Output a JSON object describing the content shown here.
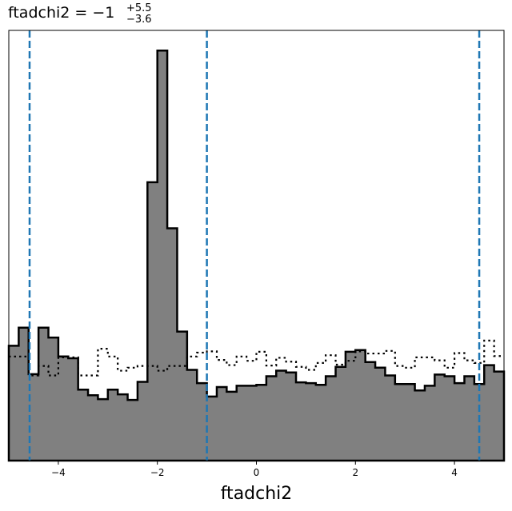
{
  "chart_data": {
    "type": "histogram",
    "title": {
      "prefix": "ftadchi2 = −1",
      "upper": "+5.5",
      "lower": "−3.6"
    },
    "xlabel": "ftadchi2",
    "ylabel": "",
    "xlim": [
      -5,
      5
    ],
    "ylim": [
      0,
      1
    ],
    "x_ticks": [
      -4,
      -2,
      0,
      2,
      4
    ],
    "x_tick_labels": [
      "−4",
      "−2",
      "0",
      "2",
      "4"
    ],
    "y_ticks_shown": false,
    "bin_edges_start": -5.0,
    "bin_width": 0.2,
    "series": [
      {
        "style": "filled-step",
        "fill": "#808080",
        "edge": "#000000",
        "values": [
          0.267,
          0.309,
          0.201,
          0.309,
          0.286,
          0.242,
          0.238,
          0.165,
          0.152,
          0.143,
          0.165,
          0.154,
          0.141,
          0.183,
          0.647,
          0.953,
          0.54,
          0.3,
          0.211,
          0.18,
          0.149,
          0.171,
          0.16,
          0.174,
          0.174,
          0.176,
          0.196,
          0.209,
          0.205,
          0.182,
          0.18,
          0.176,
          0.196,
          0.218,
          0.253,
          0.257,
          0.229,
          0.216,
          0.198,
          0.178,
          0.178,
          0.163,
          0.174,
          0.2,
          0.196,
          0.18,
          0.196,
          0.178,
          0.222,
          0.207
        ]
      },
      {
        "style": "dotted-step",
        "edge": "#000000",
        "values": [
          0.242,
          0.242,
          0.198,
          0.22,
          0.198,
          0.24,
          0.24,
          0.198,
          0.198,
          0.26,
          0.242,
          0.209,
          0.216,
          0.22,
          0.22,
          0.209,
          0.22,
          0.22,
          0.242,
          0.251,
          0.254,
          0.234,
          0.222,
          0.242,
          0.232,
          0.253,
          0.221,
          0.239,
          0.23,
          0.218,
          0.211,
          0.227,
          0.245,
          0.223,
          0.232,
          0.254,
          0.249,
          0.249,
          0.255,
          0.22,
          0.216,
          0.24,
          0.24,
          0.233,
          0.216,
          0.25,
          0.233,
          0.227,
          0.279,
          0.243
        ]
      }
    ],
    "vlines": [
      {
        "x": -4.58,
        "style": "dashed",
        "color": "#1f77b4"
      },
      {
        "x": -1.0,
        "style": "dashed",
        "color": "#1f77b4"
      },
      {
        "x": 4.5,
        "style": "dashed",
        "color": "#1f77b4"
      }
    ],
    "grid": false,
    "legend": "none"
  }
}
